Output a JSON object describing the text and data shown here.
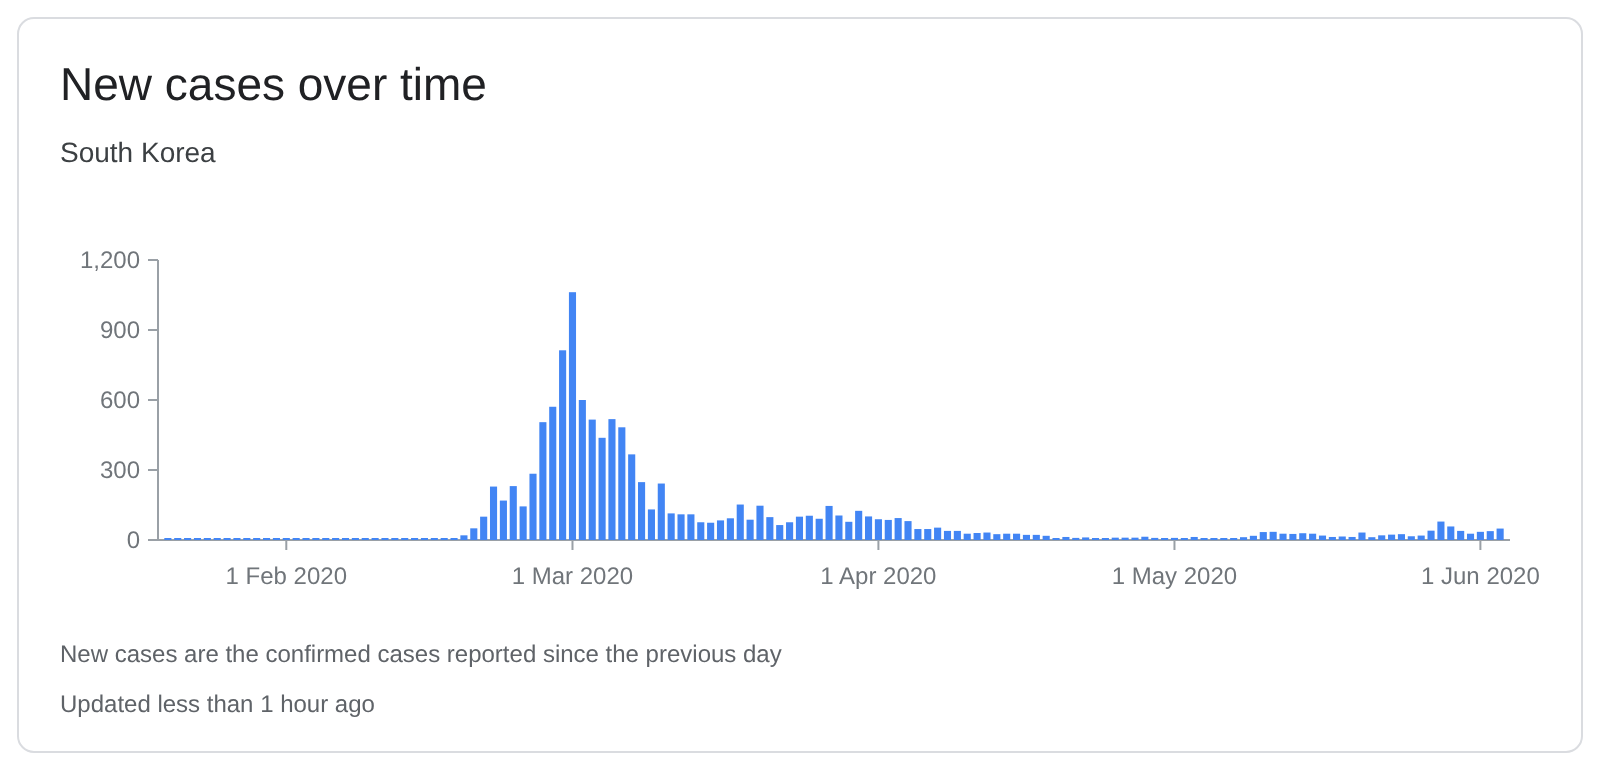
{
  "chart_data": {
    "type": "bar",
    "title": "New cases over time",
    "subtitle": "South Korea",
    "annotations": [
      "New cases are the confirmed cases reported since the previous day",
      "Updated less than 1 hour ago"
    ],
    "x": [
      "2020-01-20",
      "2020-01-21",
      "2020-01-22",
      "2020-01-23",
      "2020-01-24",
      "2020-01-25",
      "2020-01-26",
      "2020-01-27",
      "2020-01-28",
      "2020-01-29",
      "2020-01-30",
      "2020-01-31",
      "2020-02-01",
      "2020-02-02",
      "2020-02-03",
      "2020-02-04",
      "2020-02-05",
      "2020-02-06",
      "2020-02-07",
      "2020-02-08",
      "2020-02-09",
      "2020-02-10",
      "2020-02-11",
      "2020-02-12",
      "2020-02-13",
      "2020-02-14",
      "2020-02-15",
      "2020-02-16",
      "2020-02-17",
      "2020-02-18",
      "2020-02-19",
      "2020-02-20",
      "2020-02-21",
      "2020-02-22",
      "2020-02-23",
      "2020-02-24",
      "2020-02-25",
      "2020-02-26",
      "2020-02-27",
      "2020-02-28",
      "2020-02-29",
      "2020-03-01",
      "2020-03-02",
      "2020-03-03",
      "2020-03-04",
      "2020-03-05",
      "2020-03-06",
      "2020-03-07",
      "2020-03-08",
      "2020-03-09",
      "2020-03-10",
      "2020-03-11",
      "2020-03-12",
      "2020-03-13",
      "2020-03-14",
      "2020-03-15",
      "2020-03-16",
      "2020-03-17",
      "2020-03-18",
      "2020-03-19",
      "2020-03-20",
      "2020-03-21",
      "2020-03-22",
      "2020-03-23",
      "2020-03-24",
      "2020-03-25",
      "2020-03-26",
      "2020-03-27",
      "2020-03-28",
      "2020-03-29",
      "2020-03-30",
      "2020-03-31",
      "2020-04-01",
      "2020-04-02",
      "2020-04-03",
      "2020-04-04",
      "2020-04-05",
      "2020-04-06",
      "2020-04-07",
      "2020-04-08",
      "2020-04-09",
      "2020-04-10",
      "2020-04-11",
      "2020-04-12",
      "2020-04-13",
      "2020-04-14",
      "2020-04-15",
      "2020-04-16",
      "2020-04-17",
      "2020-04-18",
      "2020-04-19",
      "2020-04-20",
      "2020-04-21",
      "2020-04-22",
      "2020-04-23",
      "2020-04-24",
      "2020-04-25",
      "2020-04-26",
      "2020-04-27",
      "2020-04-28",
      "2020-04-29",
      "2020-04-30",
      "2020-05-01",
      "2020-05-02",
      "2020-05-03",
      "2020-05-04",
      "2020-05-05",
      "2020-05-06",
      "2020-05-07",
      "2020-05-08",
      "2020-05-09",
      "2020-05-10",
      "2020-05-11",
      "2020-05-12",
      "2020-05-13",
      "2020-05-14",
      "2020-05-15",
      "2020-05-16",
      "2020-05-17",
      "2020-05-18",
      "2020-05-19",
      "2020-05-20",
      "2020-05-21",
      "2020-05-22",
      "2020-05-23",
      "2020-05-24",
      "2020-05-25",
      "2020-05-26",
      "2020-05-27",
      "2020-05-28",
      "2020-05-29",
      "2020-05-30",
      "2020-05-31",
      "2020-06-01",
      "2020-06-02",
      "2020-06-03"
    ],
    "values": [
      1,
      0,
      0,
      0,
      1,
      0,
      1,
      1,
      0,
      0,
      3,
      4,
      1,
      3,
      0,
      1,
      3,
      5,
      0,
      0,
      3,
      1,
      0,
      0,
      0,
      0,
      0,
      1,
      0,
      1,
      20,
      50,
      100,
      229,
      169,
      231,
      144,
      284,
      505,
      571,
      813,
      1062,
      600,
      516,
      438,
      518,
      483,
      367,
      248,
      131,
      242,
      114,
      110,
      110,
      76,
      74,
      84,
      93,
      152,
      87,
      147,
      98,
      64,
      76,
      100,
      104,
      91,
      146,
      105,
      78,
      125,
      101,
      89,
      86,
      94,
      81,
      47,
      47,
      53,
      39,
      39,
      27,
      30,
      32,
      25,
      27,
      27,
      22,
      22,
      18,
      8,
      13,
      9,
      11,
      8,
      6,
      10,
      10,
      10,
      14,
      9,
      4,
      9,
      6,
      13,
      8,
      3,
      2,
      4,
      12,
      18,
      34,
      35,
      27,
      26,
      29,
      27,
      19,
      13,
      15,
      13,
      32,
      12,
      20,
      23,
      25,
      16,
      19,
      40,
      79,
      58,
      39,
      27,
      35,
      38,
      49
    ],
    "color": "#4285f4",
    "xlim": [
      "2020-01-19",
      "2020-06-04"
    ],
    "xticks": [
      {
        "value": "2020-02-01",
        "label": "1 Feb 2020"
      },
      {
        "value": "2020-03-01",
        "label": "1 Mar 2020"
      },
      {
        "value": "2020-04-01",
        "label": "1 Apr 2020"
      },
      {
        "value": "2020-05-01",
        "label": "1 May 2020"
      },
      {
        "value": "2020-06-01",
        "label": "1 Jun 2020"
      }
    ],
    "ylim": [
      0,
      1200
    ],
    "yticks": [
      0,
      {
        "value": 300,
        "label": "300"
      },
      600,
      900,
      {
        "value": 1200,
        "label": "1,200"
      }
    ],
    "grid": false
  }
}
